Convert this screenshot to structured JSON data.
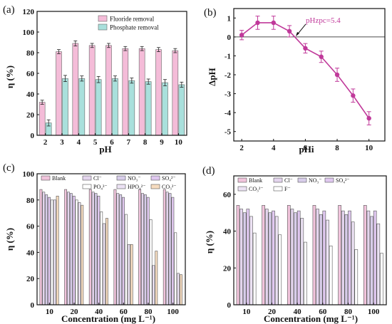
{
  "chart_data": [
    {
      "panel": "(a)",
      "type": "bar",
      "categories": [
        "2",
        "3",
        "4",
        "5",
        "6",
        "7",
        "8",
        "9",
        "10"
      ],
      "series": [
        {
          "name": "Fluoride removal",
          "color": "#f4bcd8",
          "values": [
            32,
            81,
            89,
            87,
            87,
            84,
            84,
            83,
            82
          ],
          "errors": [
            2,
            2,
            2.5,
            2,
            2,
            2,
            2,
            2,
            2
          ]
        },
        {
          "name": "Phosphate removal",
          "color": "#a9e0dc",
          "values": [
            12,
            55,
            55,
            54,
            55,
            53,
            52,
            51,
            49
          ],
          "errors": [
            3,
            3,
            2.5,
            3,
            2.5,
            2.5,
            2.5,
            3,
            2.5
          ]
        }
      ],
      "xlabel": "pH",
      "ylabel": "η (%)",
      "ylim": [
        0,
        120
      ],
      "yticks": [
        0,
        20,
        40,
        60,
        80,
        100,
        120
      ],
      "legend": "top-right"
    },
    {
      "panel": "(b)",
      "type": "line",
      "x": [
        2,
        3,
        4,
        5,
        6,
        7,
        8,
        9,
        10
      ],
      "y": [
        0.1,
        0.75,
        0.75,
        0.3,
        -0.6,
        -1.05,
        -2.0,
        -3.1,
        -4.3
      ],
      "errors": [
        0.25,
        0.35,
        0.35,
        0.3,
        0.25,
        0.3,
        0.35,
        0.35,
        0.35
      ],
      "color": "#c0399a",
      "annotation": "pHzpc=5.4",
      "annotation_x": 5.4,
      "xlabel": "pHi",
      "ylabel": "ΔpH",
      "xlim": [
        1.5,
        11
      ],
      "ylim": [
        -5.5,
        1.5
      ],
      "xticks": [
        2,
        4,
        6,
        8,
        10
      ],
      "yticks": [
        1,
        0,
        -1,
        -2,
        -3,
        -4,
        -5
      ]
    },
    {
      "panel": "(c)",
      "type": "bar",
      "categories": [
        "10",
        "20",
        "40",
        "60",
        "80",
        "100"
      ],
      "series": [
        {
          "name": "Blank",
          "color": "#f1c4dc",
          "values": [
            88,
            88,
            88,
            88,
            88,
            88
          ]
        },
        {
          "name": "Cl⁻",
          "color": "#e4d5ee",
          "values": [
            86,
            86,
            86,
            85,
            85,
            86
          ]
        },
        {
          "name": "NO₃⁻",
          "color": "#d8cdea",
          "values": [
            84,
            85,
            85,
            84,
            84,
            85
          ]
        },
        {
          "name": "SO₄²⁻",
          "color": "#e0c8f0",
          "values": [
            82,
            83,
            83,
            82,
            82,
            82
          ]
        },
        {
          "name": "PO₄³⁻",
          "color": "#ffffff",
          "values": [
            80,
            80,
            71,
            69,
            65,
            55
          ]
        },
        {
          "name": "HPO₄²⁻",
          "color": "#ece2f4",
          "values": [
            80,
            78,
            62,
            46,
            30,
            24
          ]
        },
        {
          "name": "CO₃²⁻",
          "color": "#f6dcc0",
          "values": [
            83,
            76,
            66,
            46,
            41,
            23
          ]
        }
      ],
      "xlabel": "Concentration (mg L⁻¹)",
      "ylabel": "η (%)",
      "ylim": [
        0,
        100
      ],
      "yticks": [
        0,
        20,
        40,
        60,
        80,
        100
      ],
      "legend": "top"
    },
    {
      "panel": "(d)",
      "type": "bar",
      "categories": [
        "10",
        "20",
        "40",
        "60",
        "80",
        "100"
      ],
      "series": [
        {
          "name": "Blank",
          "color": "#f1c4dc",
          "values": [
            54,
            54,
            54,
            54,
            54,
            54
          ]
        },
        {
          "name": "Cl⁻",
          "color": "#e4d5ee",
          "values": [
            52,
            52,
            52,
            52,
            51,
            51
          ]
        },
        {
          "name": "NO₃⁻",
          "color": "#d8cdea",
          "values": [
            50,
            50,
            50,
            49,
            49,
            48
          ]
        },
        {
          "name": "SO₄²⁻",
          "color": "#e0c8f0",
          "values": [
            52,
            51,
            51,
            51,
            51,
            51
          ]
        },
        {
          "name": "CO₃²⁻",
          "color": "#ece2f4",
          "values": [
            48,
            48,
            47,
            46,
            45,
            44
          ]
        },
        {
          "name": "F⁻",
          "color": "#ffffff",
          "values": [
            39,
            38,
            34,
            32,
            30,
            28
          ]
        }
      ],
      "xlabel": "Concentration (mg L⁻¹)",
      "ylabel": "η (%)",
      "ylim": [
        0,
        70
      ],
      "yticks": [
        0,
        20,
        40,
        60
      ],
      "legend": "top"
    }
  ]
}
